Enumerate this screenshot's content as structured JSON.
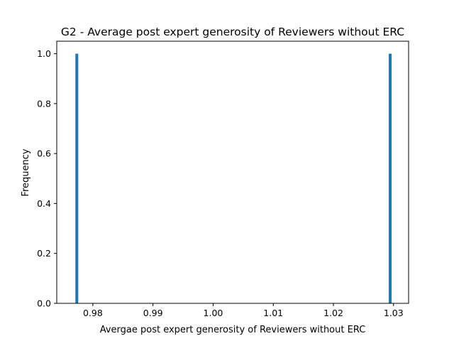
{
  "chart_data": {
    "type": "bar",
    "title": "G2 - Average post expert generosity of Reviewers without ERC",
    "xlabel": "Avergae post expert generosity of Reviewers without ERC",
    "ylabel": "Frequency",
    "xlim": [
      0.974,
      1.0325
    ],
    "ylim": [
      0,
      1.05
    ],
    "bar_color": "#1f77b4",
    "grid": false,
    "x_ticks": [
      {
        "value": 0.98,
        "label": "0.98"
      },
      {
        "value": 0.99,
        "label": "0.99"
      },
      {
        "value": 1.0,
        "label": "1.00"
      },
      {
        "value": 1.01,
        "label": "1.01"
      },
      {
        "value": 1.02,
        "label": "1.02"
      },
      {
        "value": 1.03,
        "label": "1.03"
      }
    ],
    "y_ticks": [
      {
        "value": 0.0,
        "label": "0.0"
      },
      {
        "value": 0.2,
        "label": "0.2"
      },
      {
        "value": 0.4,
        "label": "0.4"
      },
      {
        "value": 0.6,
        "label": "0.6"
      },
      {
        "value": 0.8,
        "label": "0.8"
      },
      {
        "value": 1.0,
        "label": "1.0"
      }
    ],
    "bins": [
      {
        "x_start": 0.9771,
        "x_end": 0.9773,
        "value": 1
      },
      {
        "x_start": 1.0292,
        "x_end": 1.0294,
        "value": 1
      }
    ]
  }
}
